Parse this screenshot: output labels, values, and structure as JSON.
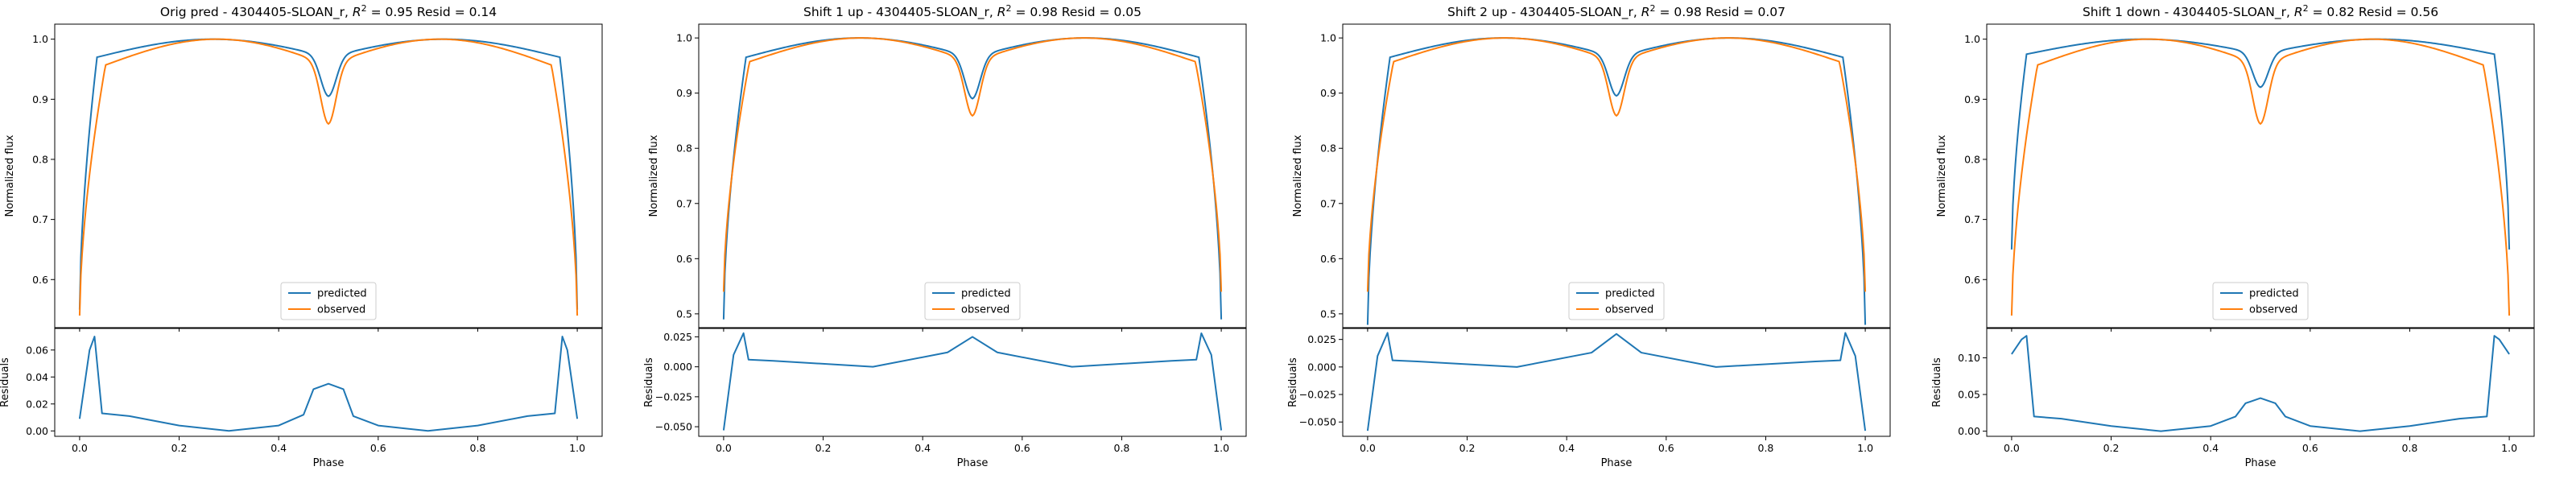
{
  "chart_data": [
    {
      "type": "line",
      "title": "Orig pred - 4304405-SLOAN_r, R² = 0.95 Resid = 0.14",
      "title_parts": {
        "pre": "Orig pred - 4304405-SLOAN_r, ",
        "r": "R",
        "sup": "2",
        "post": " = 0.95 Resid = 0.14"
      },
      "ylabel": "Normalized flux",
      "resid_ylabel": "Residuals",
      "xlabel": "Phase",
      "xlim": [
        -0.05,
        1.05
      ],
      "ylim": [
        0.52,
        1.025
      ],
      "yticks": [
        0.6,
        0.7,
        0.8,
        0.9,
        1.0
      ],
      "ytick_labels": [
        "0.6",
        "0.7",
        "0.8",
        "0.9",
        "1.0"
      ],
      "resid_ylim": [
        -0.004,
        0.076
      ],
      "resid_yticks": [
        0.0,
        0.02,
        0.04,
        0.06
      ],
      "resid_ytick_labels": [
        "0.00",
        "0.02",
        "0.04",
        "0.06"
      ],
      "xticks": [
        0.0,
        0.2,
        0.4,
        0.6,
        0.8,
        1.0
      ],
      "xtick_labels": [
        "0.0",
        "0.2",
        "0.4",
        "0.6",
        "0.8",
        "1.0"
      ],
      "legend_position": "lower center",
      "legend": [
        "predicted",
        "observed"
      ],
      "predicted": {
        "base": 0.55,
        "plateau": 0.97,
        "ecl_depth": 0.065,
        "oc_amp": 0.03,
        "ramp_width": 0.035
      },
      "observed": {
        "base": 0.54,
        "plateau": 0.957,
        "ecl_depth": 0.098,
        "oc_amp": 0.043,
        "ramp_width": 0.052
      },
      "residual_points": {
        "x": [
          0.0,
          0.02,
          0.03,
          0.045,
          0.1,
          0.2,
          0.3,
          0.4,
          0.45,
          0.47,
          0.5,
          0.53,
          0.55,
          0.6,
          0.7,
          0.8,
          0.9,
          0.955,
          0.97,
          0.98,
          1.0
        ],
        "y": [
          0.009,
          0.06,
          0.07,
          0.013,
          0.011,
          0.004,
          0.0,
          0.004,
          0.012,
          0.031,
          0.035,
          0.031,
          0.011,
          0.004,
          0.0,
          0.004,
          0.011,
          0.013,
          0.07,
          0.06,
          0.009
        ]
      }
    },
    {
      "type": "line",
      "title": "Shift 1 up - 4304405-SLOAN_r, R² = 0.98 Resid = 0.05",
      "title_parts": {
        "pre": "Shift 1 up - 4304405-SLOAN_r, ",
        "r": "R",
        "sup": "2",
        "post": " = 0.98 Resid = 0.05"
      },
      "ylabel": "Normalized flux",
      "resid_ylabel": "Residuals",
      "xlabel": "Phase",
      "xlim": [
        -0.05,
        1.05
      ],
      "ylim": [
        0.475,
        1.025
      ],
      "yticks": [
        0.5,
        0.6,
        0.7,
        0.8,
        0.9,
        1.0
      ],
      "ytick_labels": [
        "0.5",
        "0.6",
        "0.7",
        "0.8",
        "0.9",
        "1.0"
      ],
      "resid_ylim": [
        -0.058,
        0.032
      ],
      "resid_yticks": [
        -0.05,
        -0.025,
        0.0,
        0.025
      ],
      "resid_ytick_labels": [
        "−0.050",
        "−0.025",
        "0.000",
        "0.025"
      ],
      "xticks": [
        0.0,
        0.2,
        0.4,
        0.6,
        0.8,
        1.0
      ],
      "xtick_labels": [
        "0.0",
        "0.2",
        "0.4",
        "0.6",
        "0.8",
        "1.0"
      ],
      "legend_position": "lower center",
      "legend": [
        "predicted",
        "observed"
      ],
      "predicted": {
        "base": 0.49,
        "plateau": 0.965,
        "ecl_depth": 0.075,
        "oc_amp": 0.035,
        "ramp_width": 0.045
      },
      "observed": {
        "base": 0.54,
        "plateau": 0.957,
        "ecl_depth": 0.098,
        "oc_amp": 0.043,
        "ramp_width": 0.052
      },
      "residual_points": {
        "x": [
          0.0,
          0.02,
          0.04,
          0.05,
          0.1,
          0.3,
          0.45,
          0.5,
          0.55,
          0.7,
          0.9,
          0.95,
          0.96,
          0.98,
          1.0
        ],
        "y": [
          -0.053,
          0.01,
          0.028,
          0.006,
          0.005,
          0.0,
          0.012,
          0.025,
          0.012,
          0.0,
          0.005,
          0.006,
          0.028,
          0.01,
          -0.053
        ]
      }
    },
    {
      "type": "line",
      "title": "Shift 2 up - 4304405-SLOAN_r, R² = 0.98 Resid = 0.07",
      "title_parts": {
        "pre": "Shift 2 up - 4304405-SLOAN_r, ",
        "r": "R",
        "sup": "2",
        "post": " = 0.98 Resid = 0.07"
      },
      "ylabel": "Normalized flux",
      "resid_ylabel": "Residuals",
      "xlabel": "Phase",
      "xlim": [
        -0.05,
        1.05
      ],
      "ylim": [
        0.475,
        1.025
      ],
      "yticks": [
        0.5,
        0.6,
        0.7,
        0.8,
        0.9,
        1.0
      ],
      "ytick_labels": [
        "0.5",
        "0.6",
        "0.7",
        "0.8",
        "0.9",
        "1.0"
      ],
      "resid_ylim": [
        -0.063,
        0.035
      ],
      "resid_yticks": [
        -0.05,
        -0.025,
        0.0,
        0.025
      ],
      "resid_ytick_labels": [
        "−0.050",
        "−0.025",
        "0.000",
        "0.025"
      ],
      "xticks": [
        0.0,
        0.2,
        0.4,
        0.6,
        0.8,
        1.0
      ],
      "xtick_labels": [
        "0.0",
        "0.2",
        "0.4",
        "0.6",
        "0.8",
        "1.0"
      ],
      "legend_position": "lower center",
      "legend": [
        "predicted",
        "observed"
      ],
      "predicted": {
        "base": 0.48,
        "plateau": 0.965,
        "ecl_depth": 0.07,
        "oc_amp": 0.035,
        "ramp_width": 0.045
      },
      "observed": {
        "base": 0.54,
        "plateau": 0.957,
        "ecl_depth": 0.098,
        "oc_amp": 0.043,
        "ramp_width": 0.052
      },
      "residual_points": {
        "x": [
          0.0,
          0.02,
          0.04,
          0.05,
          0.1,
          0.3,
          0.45,
          0.5,
          0.55,
          0.7,
          0.9,
          0.95,
          0.96,
          0.98,
          1.0
        ],
        "y": [
          -0.058,
          0.01,
          0.031,
          0.006,
          0.005,
          0.0,
          0.013,
          0.03,
          0.013,
          0.0,
          0.005,
          0.006,
          0.031,
          0.01,
          -0.058
        ]
      }
    },
    {
      "type": "line",
      "title": "Shift 1 down - 4304405-SLOAN_r, R² = 0.82 Resid = 0.56",
      "title_parts": {
        "pre": "Shift 1 down - 4304405-SLOAN_r, ",
        "r": "R",
        "sup": "2",
        "post": " = 0.82 Resid = 0.56"
      },
      "ylabel": "Normalized flux",
      "resid_ylabel": "Residuals",
      "xlabel": "Phase",
      "xlim": [
        -0.05,
        1.05
      ],
      "ylim": [
        0.52,
        1.025
      ],
      "yticks": [
        0.6,
        0.7,
        0.8,
        0.9,
        1.0
      ],
      "ytick_labels": [
        "0.6",
        "0.7",
        "0.8",
        "0.9",
        "1.0"
      ],
      "resid_ylim": [
        -0.007,
        0.14
      ],
      "resid_yticks": [
        0.0,
        0.05,
        0.1
      ],
      "resid_ytick_labels": [
        "0.00",
        "0.05",
        "0.10"
      ],
      "xticks": [
        0.0,
        0.2,
        0.4,
        0.6,
        0.8,
        1.0
      ],
      "xtick_labels": [
        "0.0",
        "0.2",
        "0.4",
        "0.6",
        "0.8",
        "1.0"
      ],
      "legend_position": "lower center",
      "legend": [
        "predicted",
        "observed"
      ],
      "predicted": {
        "base": 0.65,
        "plateau": 0.975,
        "ecl_depth": 0.055,
        "oc_amp": 0.025,
        "ramp_width": 0.03
      },
      "observed": {
        "base": 0.54,
        "plateau": 0.957,
        "ecl_depth": 0.098,
        "oc_amp": 0.043,
        "ramp_width": 0.052
      },
      "residual_points": {
        "x": [
          0.0,
          0.02,
          0.03,
          0.045,
          0.1,
          0.2,
          0.3,
          0.4,
          0.45,
          0.47,
          0.5,
          0.53,
          0.55,
          0.6,
          0.7,
          0.8,
          0.9,
          0.955,
          0.97,
          0.98,
          1.0
        ],
        "y": [
          0.105,
          0.125,
          0.13,
          0.02,
          0.017,
          0.007,
          0.0,
          0.007,
          0.02,
          0.038,
          0.045,
          0.038,
          0.02,
          0.007,
          0.0,
          0.007,
          0.017,
          0.02,
          0.13,
          0.125,
          0.105
        ]
      }
    }
  ],
  "colors": {
    "predicted": "#1f77b4",
    "observed": "#ff7f0e"
  }
}
